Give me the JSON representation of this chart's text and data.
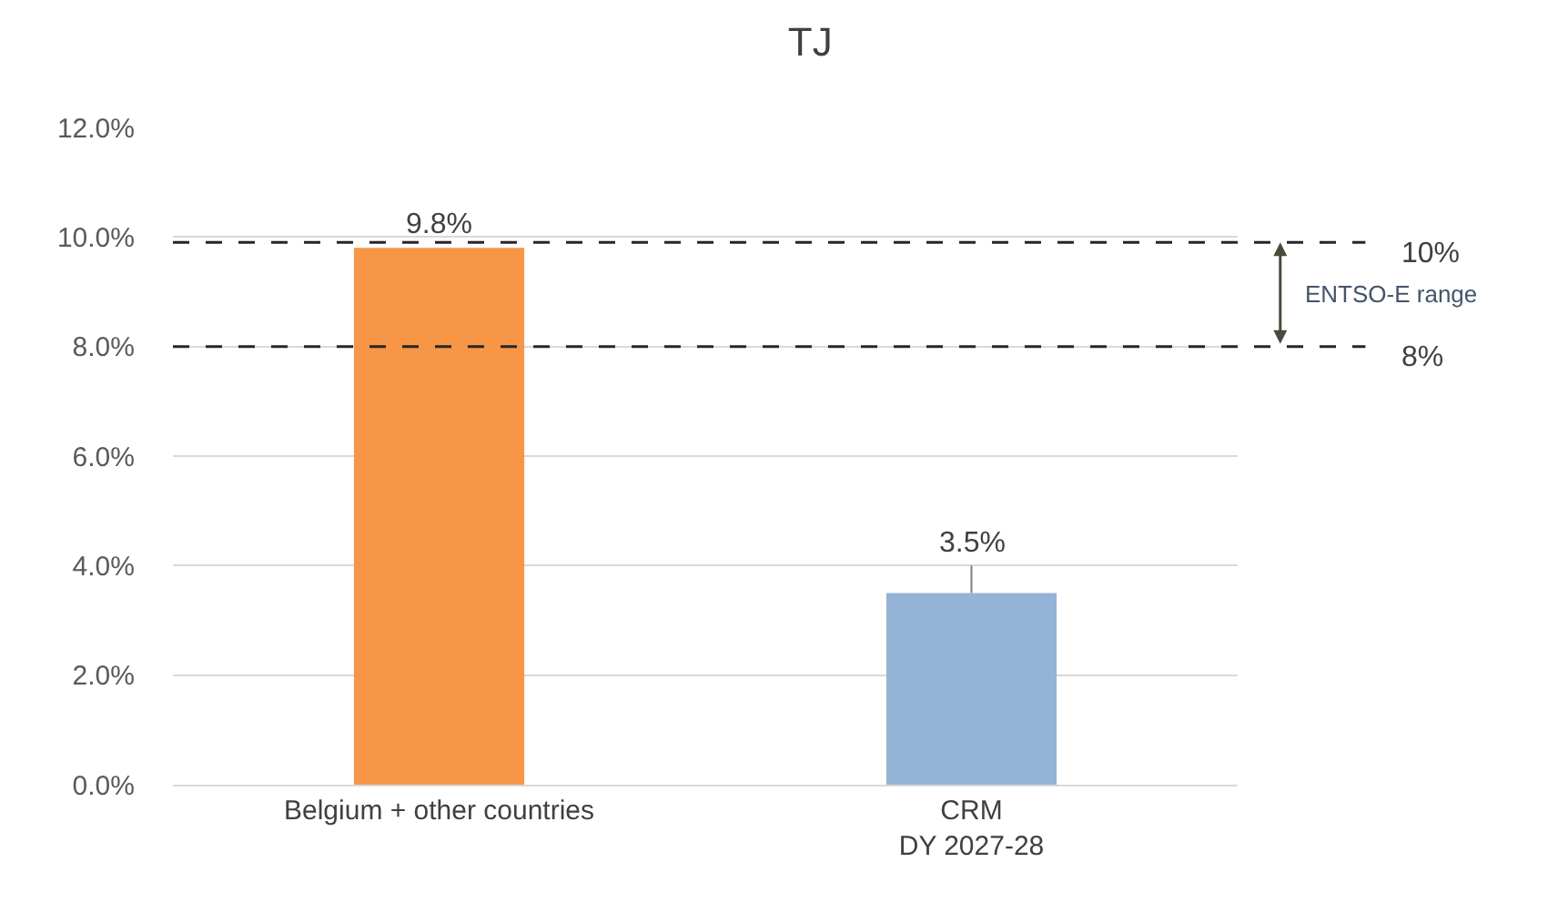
{
  "chart_data": {
    "type": "bar",
    "title": "TJ",
    "categories": [
      "Belgium + other countries",
      "CRM\nDY 2027-28"
    ],
    "values": [
      9.8,
      3.5
    ],
    "colors": [
      "#f79646",
      "#95b3d7"
    ],
    "value_labels": [
      "9.8%",
      "3.5%"
    ],
    "errors": [
      null,
      [
        3.5,
        4.0
      ]
    ],
    "ylim": [
      0,
      12
    ],
    "yticks": [
      {
        "value": 0,
        "label": "0.0%"
      },
      {
        "value": 2,
        "label": "2.0%"
      },
      {
        "value": 4,
        "label": "4.0%"
      },
      {
        "value": 6,
        "label": "6.0%"
      },
      {
        "value": 8,
        "label": "8.0%"
      },
      {
        "value": 10,
        "label": "10.0%"
      },
      {
        "value": 12,
        "label": "12.0%"
      }
    ],
    "grid": "y",
    "ref_lines": [
      {
        "axis": "y",
        "value": 9.9,
        "label": "10%",
        "color": "#262626",
        "line_style": "dashed"
      },
      {
        "axis": "y",
        "value": 8,
        "label": "8%",
        "color": "#262626",
        "line_style": "dashed"
      }
    ],
    "annotations": [
      "ENTSO-E range"
    ]
  }
}
